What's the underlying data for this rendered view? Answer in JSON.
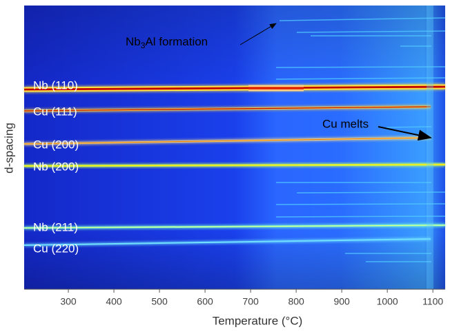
{
  "chart_data": {
    "type": "heatmap",
    "x_label": "Temperature (°C)",
    "y_label": "d-spacing",
    "xlim": [
      203,
      1127
    ],
    "xticks": [
      300,
      400,
      500,
      600,
      700,
      800,
      900,
      1000,
      1100
    ],
    "peak_labels": [
      "Nb (110)",
      "Cu (111)",
      "Cu (200)",
      "Nb (200)",
      "Nb (211)",
      "Cu (220)"
    ],
    "annotations": {
      "melt": "Cu melts",
      "formation": [
        "Nb",
        "3",
        "Al formation"
      ]
    }
  }
}
